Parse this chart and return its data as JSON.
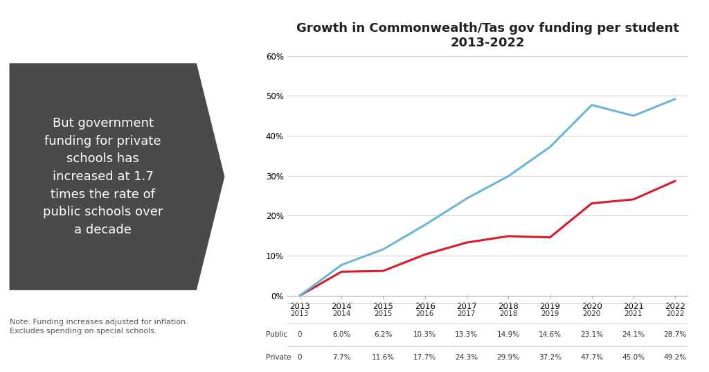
{
  "title_line1": "Growth in Commonwealth/Tas gov funding per student",
  "title_line2": "2013-2022",
  "years": [
    2013,
    2014,
    2015,
    2016,
    2017,
    2018,
    2019,
    2020,
    2021,
    2022
  ],
  "public_values": [
    0,
    6.0,
    6.2,
    10.3,
    13.3,
    14.9,
    14.6,
    23.1,
    24.1,
    28.7
  ],
  "private_values": [
    0,
    7.7,
    11.6,
    17.7,
    24.3,
    29.9,
    37.2,
    47.7,
    45.0,
    49.2
  ],
  "public_labels": [
    "0",
    "6.0%",
    "6.2%",
    "10.3%",
    "13.3%",
    "14.9%",
    "14.6%",
    "23.1%",
    "24.1%",
    "28.7%"
  ],
  "private_labels": [
    "0",
    "7.7%",
    "11.6%",
    "17.7%",
    "24.3%",
    "29.9%",
    "37.2%",
    "47.7%",
    "45.0%",
    "49.2%"
  ],
  "public_color": "#d9192a",
  "private_color": "#6bb5d6",
  "ylim": [
    0,
    60
  ],
  "yticks": [
    0,
    10,
    20,
    30,
    40,
    50,
    60
  ],
  "ytick_labels": [
    "0%",
    "10%",
    "20%",
    "30%",
    "40%",
    "50%",
    "60%"
  ],
  "bg_color": "#ffffff",
  "arrow_box_color": "#4a4a4a",
  "arrow_text": "But government\nfunding for private\nschools has\nincreased at 1.7\ntimes the rate of\npublic schools over\na decade",
  "note_text": "Note: Funding increases adjusted for inflation.\nExcludes spending on special schools.",
  "title_fontsize": 13,
  "axis_fontsize": 8.5,
  "table_fontsize": 7.5
}
